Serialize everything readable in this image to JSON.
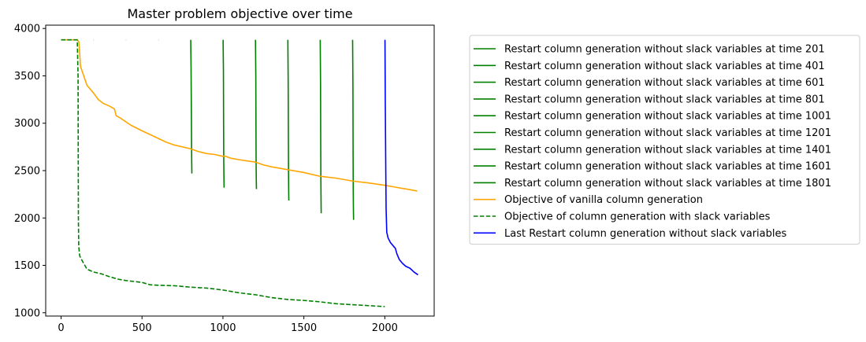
{
  "chart_data": {
    "type": "line",
    "title": "Master problem objective over time",
    "xlabel": "",
    "ylabel": "",
    "xlim": [
      -95,
      2305
    ],
    "ylim": [
      965,
      4035
    ],
    "xticks": [
      0,
      500,
      1000,
      1500,
      2000
    ],
    "yticks": [
      1000,
      1500,
      2000,
      2500,
      3000,
      3500,
      4000
    ],
    "grid": false,
    "legend_position": "outside-right",
    "series": [
      {
        "name": "Restart column generation without slack variables at time 201",
        "color": "#008000",
        "dash": "solid",
        "points": [
          [
            201,
            3880
          ],
          [
            202,
            3880
          ]
        ]
      },
      {
        "name": "Restart column generation without slack variables at time 401",
        "color": "#008000",
        "dash": "solid",
        "points": [
          [
            401,
            3880
          ],
          [
            402,
            3880
          ]
        ]
      },
      {
        "name": "Restart column generation without slack variables at time 601",
        "color": "#008000",
        "dash": "solid",
        "points": [
          [
            601,
            3880
          ],
          [
            602,
            3880
          ]
        ]
      },
      {
        "name": "Restart column generation without slack variables at time 801",
        "color": "#008000",
        "dash": "solid",
        "points": [
          [
            801,
            3880
          ],
          [
            803,
            3600
          ],
          [
            805,
            3100
          ],
          [
            806,
            2800
          ],
          [
            807,
            2600
          ],
          [
            808,
            2470
          ]
        ]
      },
      {
        "name": "Restart column generation without slack variables at time 1001",
        "color": "#008000",
        "dash": "solid",
        "points": [
          [
            1001,
            3880
          ],
          [
            1003,
            3550
          ],
          [
            1004,
            3000
          ],
          [
            1005,
            2600
          ],
          [
            1006,
            2450
          ],
          [
            1007,
            2320
          ]
        ]
      },
      {
        "name": "Restart column generation without slack variables at time 1201",
        "color": "#008000",
        "dash": "solid",
        "points": [
          [
            1201,
            3880
          ],
          [
            1203,
            3500
          ],
          [
            1204,
            2950
          ],
          [
            1205,
            2550
          ],
          [
            1206,
            2400
          ],
          [
            1207,
            2305
          ]
        ]
      },
      {
        "name": "Restart column generation without slack variables at time 1401",
        "color": "#008000",
        "dash": "solid",
        "points": [
          [
            1401,
            3880
          ],
          [
            1403,
            3450
          ],
          [
            1404,
            2900
          ],
          [
            1405,
            2500
          ],
          [
            1406,
            2300
          ],
          [
            1407,
            2185
          ]
        ]
      },
      {
        "name": "Restart column generation without slack variables at time 1601",
        "color": "#008000",
        "dash": "solid",
        "points": [
          [
            1601,
            3880
          ],
          [
            1603,
            3400
          ],
          [
            1604,
            2800
          ],
          [
            1605,
            2400
          ],
          [
            1606,
            2200
          ],
          [
            1607,
            2050
          ]
        ]
      },
      {
        "name": "Restart column generation without slack variables at time 1801",
        "color": "#008000",
        "dash": "solid",
        "points": [
          [
            1801,
            3880
          ],
          [
            1803,
            3400
          ],
          [
            1804,
            2700
          ],
          [
            1805,
            2300
          ],
          [
            1806,
            2100
          ],
          [
            1807,
            1980
          ]
        ]
      },
      {
        "name": "Objective of vanilla column generation",
        "color": "#FFA500",
        "dash": "solid",
        "points": [
          [
            0,
            3880
          ],
          [
            60,
            3880
          ],
          [
            100,
            3880
          ],
          [
            110,
            3860
          ],
          [
            120,
            3600
          ],
          [
            140,
            3500
          ],
          [
            160,
            3400
          ],
          [
            200,
            3320
          ],
          [
            230,
            3250
          ],
          [
            260,
            3210
          ],
          [
            300,
            3180
          ],
          [
            330,
            3150
          ],
          [
            340,
            3080
          ],
          [
            370,
            3050
          ],
          [
            430,
            2980
          ],
          [
            500,
            2920
          ],
          [
            600,
            2840
          ],
          [
            650,
            2800
          ],
          [
            700,
            2770
          ],
          [
            800,
            2730
          ],
          [
            850,
            2700
          ],
          [
            900,
            2680
          ],
          [
            950,
            2670
          ],
          [
            1000,
            2650
          ],
          [
            1010,
            2655
          ],
          [
            1050,
            2630
          ],
          [
            1100,
            2615
          ],
          [
            1200,
            2590
          ],
          [
            1250,
            2560
          ],
          [
            1300,
            2540
          ],
          [
            1400,
            2510
          ],
          [
            1500,
            2480
          ],
          [
            1600,
            2440
          ],
          [
            1700,
            2420
          ],
          [
            1800,
            2390
          ],
          [
            1900,
            2370
          ],
          [
            2000,
            2345
          ],
          [
            2050,
            2330
          ],
          [
            2100,
            2315
          ],
          [
            2150,
            2300
          ],
          [
            2200,
            2285
          ]
        ]
      },
      {
        "name": "Objective of column generation with slack variables",
        "color": "#008000",
        "dash": "dashed",
        "points": [
          [
            0,
            3880
          ],
          [
            100,
            3880
          ],
          [
            105,
            3500
          ],
          [
            106,
            2600
          ],
          [
            107,
            2000
          ],
          [
            109,
            1700
          ],
          [
            115,
            1600
          ],
          [
            130,
            1550
          ],
          [
            160,
            1460
          ],
          [
            200,
            1430
          ],
          [
            250,
            1410
          ],
          [
            300,
            1380
          ],
          [
            350,
            1355
          ],
          [
            400,
            1340
          ],
          [
            450,
            1330
          ],
          [
            500,
            1320
          ],
          [
            550,
            1295
          ],
          [
            600,
            1290
          ],
          [
            700,
            1285
          ],
          [
            800,
            1270
          ],
          [
            900,
            1260
          ],
          [
            1000,
            1240
          ],
          [
            1050,
            1225
          ],
          [
            1100,
            1210
          ],
          [
            1200,
            1190
          ],
          [
            1300,
            1160
          ],
          [
            1400,
            1140
          ],
          [
            1500,
            1130
          ],
          [
            1600,
            1115
          ],
          [
            1700,
            1095
          ],
          [
            1800,
            1085
          ],
          [
            1900,
            1075
          ],
          [
            2000,
            1065
          ]
        ]
      },
      {
        "name": "Last Restart column generation without slack variables",
        "color": "#0000FF",
        "dash": "solid",
        "points": [
          [
            2001,
            3880
          ],
          [
            2003,
            3200
          ],
          [
            2006,
            2500
          ],
          [
            2008,
            2100
          ],
          [
            2012,
            1850
          ],
          [
            2020,
            1790
          ],
          [
            2035,
            1740
          ],
          [
            2055,
            1700
          ],
          [
            2065,
            1680
          ],
          [
            2075,
            1620
          ],
          [
            2090,
            1560
          ],
          [
            2110,
            1520
          ],
          [
            2130,
            1490
          ],
          [
            2155,
            1470
          ],
          [
            2180,
            1430
          ],
          [
            2205,
            1400
          ]
        ]
      }
    ]
  }
}
